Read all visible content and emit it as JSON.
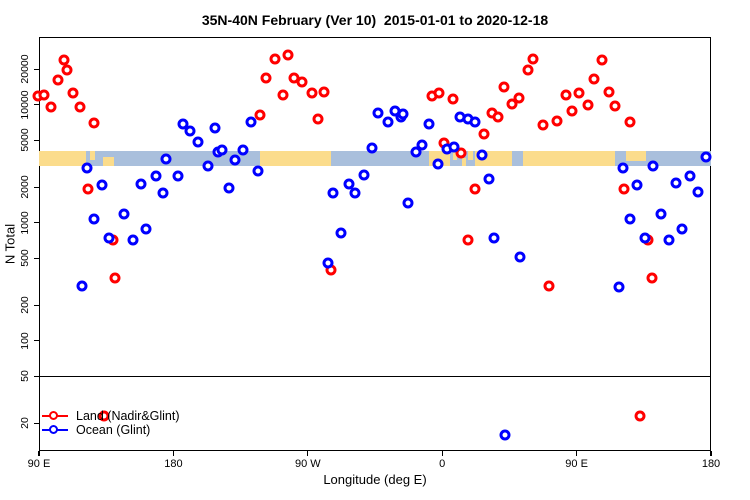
{
  "title": "35N-40N February (Ver 10)  2015-01-01 to 2020-12-18",
  "colors": {
    "land_series": "#ff0000",
    "ocean_series": "#0000ff",
    "band_land": "#fbdc8c",
    "band_ocean": "#a9bfdc",
    "axis": "#000000"
  },
  "legend": {
    "items": [
      {
        "label": "Land (Nadir&Glint)",
        "color": "#ff0000"
      },
      {
        "label": "Ocean (Glint)",
        "color": "#0000ff"
      }
    ]
  },
  "chart_data": {
    "type": "scatter",
    "title": "35N-40N February (Ver 10)  2015-01-01 to 2020-12-18",
    "xlabel": "Longitude (deg E)",
    "ylabel": "N Total",
    "x_axis": {
      "span_deg": 450,
      "note": "x axis starts at 90E and wraps eastward through 180, 90W, 0, 90E to 180; deg = degrees east of 90E",
      "ticks_deg": [
        0,
        90,
        180,
        270,
        360,
        450
      ],
      "tick_labels": [
        "90 E",
        "180",
        "90 W",
        "0",
        "90 E",
        "180"
      ]
    },
    "y_axis": {
      "scale": "log",
      "range": [
        11.6,
        37600
      ],
      "ticks": [
        20,
        50,
        100,
        200,
        500,
        1000,
        2000,
        5000,
        10000,
        20000
      ]
    },
    "reference_line_n": 50,
    "map_band": {
      "n_range": [
        3030,
        4060
      ],
      "description": "land/ocean strip map at 35N-40N",
      "land_segments": [
        {
          "from": 0,
          "to": 31.5
        },
        {
          "from": 34,
          "to": 37.5,
          "h": 0.6,
          "align": "top"
        },
        {
          "from": 43,
          "to": 50,
          "h": 0.6,
          "align": "bottom"
        },
        {
          "from": 148,
          "to": 195.5
        },
        {
          "from": 261,
          "to": 275.5
        },
        {
          "from": 277,
          "to": 280,
          "h": 0.6,
          "align": "top"
        },
        {
          "from": 283,
          "to": 286,
          "h": 0.55,
          "align": "bottom"
        },
        {
          "from": 287.5,
          "to": 290.5,
          "h": 0.6,
          "align": "top"
        },
        {
          "from": 292,
          "to": 317
        },
        {
          "from": 324,
          "to": 386
        },
        {
          "from": 393,
          "to": 406.5,
          "h": 0.7,
          "align": "top"
        }
      ]
    },
    "series": [
      {
        "name": "Land (Nadir&Glint)",
        "color_key": "land_series",
        "points": [
          [
            -1,
            11900
          ],
          [
            3.2,
            12100
          ],
          [
            7.8,
            9620
          ],
          [
            12.5,
            16300
          ],
          [
            16.9,
            23900
          ],
          [
            18.7,
            19600
          ],
          [
            22.6,
            12700
          ],
          [
            27.5,
            9570
          ],
          [
            37,
            7030
          ],
          [
            33,
            1930
          ],
          [
            49.4,
            713
          ],
          [
            50.9,
            338
          ],
          [
            43.5,
            23
          ],
          [
            148,
            8180
          ],
          [
            152,
            16900
          ],
          [
            158.1,
            24400
          ],
          [
            163.2,
            12100
          ],
          [
            166.6,
            26400
          ],
          [
            171,
            16900
          ],
          [
            176.3,
            15500
          ],
          [
            182.6,
            12600
          ],
          [
            186.6,
            7570
          ],
          [
            191,
            12900
          ],
          [
            195.5,
            397
          ],
          [
            263.2,
            11800
          ],
          [
            268.1,
            12500
          ],
          [
            271.4,
            4760
          ],
          [
            277,
            11300
          ],
          [
            282.6,
            3920
          ],
          [
            292.2,
            1930
          ],
          [
            287,
            709
          ],
          [
            298.2,
            5610
          ],
          [
            303.4,
            8450
          ],
          [
            307.1,
            7910
          ],
          [
            311.6,
            14200
          ],
          [
            316.8,
            10100
          ],
          [
            321.7,
            11500
          ],
          [
            327.2,
            19700
          ],
          [
            331.1,
            24400
          ],
          [
            337.3,
            6730
          ],
          [
            341.8,
            292
          ],
          [
            347,
            7280
          ],
          [
            353,
            12200
          ],
          [
            357,
            8890
          ],
          [
            361.4,
            12500
          ],
          [
            367.5,
            9980
          ],
          [
            371.9,
            16700
          ],
          [
            377.1,
            23900
          ],
          [
            381.5,
            12900
          ],
          [
            386,
            9770
          ],
          [
            396,
            7180
          ],
          [
            392,
            1930
          ],
          [
            408.1,
            713
          ],
          [
            410.3,
            342
          ],
          [
            402.5,
            23
          ]
        ]
      },
      {
        "name": "Ocean (Glint)",
        "color_key": "ocean_series",
        "points": [
          [
            31.9,
            2890
          ],
          [
            42,
            2110
          ],
          [
            37,
            1070
          ],
          [
            47.1,
            738
          ],
          [
            57.1,
            1190
          ],
          [
            62.7,
            713
          ],
          [
            71.6,
            879
          ],
          [
            28.6,
            291
          ],
          [
            68.1,
            2140
          ],
          [
            78.3,
            2500
          ],
          [
            82.8,
            1800
          ],
          [
            85,
            3500
          ],
          [
            93.3,
            2510
          ],
          [
            96.6,
            6820
          ],
          [
            101.1,
            5980
          ],
          [
            106.7,
            4850
          ],
          [
            113,
            3020
          ],
          [
            117.9,
            6310
          ],
          [
            120.1,
            4000
          ],
          [
            122.4,
            4130
          ],
          [
            127.5,
            1980
          ],
          [
            131.3,
            3400
          ],
          [
            136.9,
            4130
          ],
          [
            142,
            7100
          ],
          [
            146.5,
            2740
          ],
          [
            193.7,
            453
          ],
          [
            197.1,
            1790
          ],
          [
            202.2,
            823
          ],
          [
            207.8,
            2140
          ],
          [
            211.6,
            1790
          ],
          [
            217.6,
            2530
          ],
          [
            222.8,
            4280
          ],
          [
            226.8,
            8450
          ],
          [
            233.5,
            7180
          ],
          [
            238.4,
            8850
          ],
          [
            242.2,
            7910
          ],
          [
            244,
            8280
          ],
          [
            247.3,
            1480
          ],
          [
            252.5,
            4000
          ],
          [
            256.3,
            4560
          ],
          [
            261.4,
            6820
          ],
          [
            267,
            3140
          ],
          [
            273.4,
            4210
          ],
          [
            278.1,
            4410
          ],
          [
            281.9,
            7950
          ],
          [
            287.5,
            7520
          ],
          [
            292.2,
            7180
          ],
          [
            296.7,
            3750
          ],
          [
            301.6,
            2330
          ],
          [
            304.5,
            745
          ],
          [
            312.3,
            16
          ],
          [
            322.4,
            509
          ],
          [
            388.2,
            288
          ],
          [
            390.9,
            2900
          ],
          [
            396,
            1080
          ],
          [
            400.5,
            2100
          ],
          [
            406.1,
            738
          ],
          [
            411,
            3020
          ],
          [
            416.6,
            1190
          ],
          [
            421.7,
            713
          ],
          [
            426.6,
            2160
          ],
          [
            430.4,
            886
          ],
          [
            436.2,
            2490
          ],
          [
            441.1,
            1810
          ],
          [
            446.7,
            3620
          ]
        ]
      }
    ]
  }
}
